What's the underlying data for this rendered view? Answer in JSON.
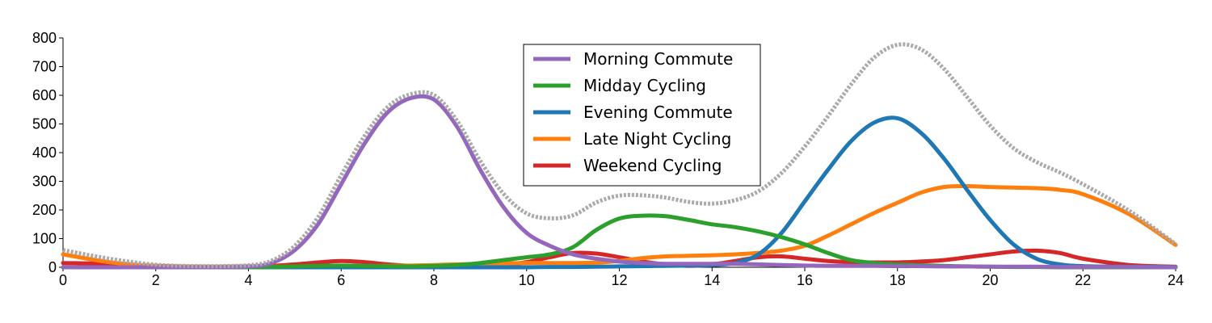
{
  "chart_data": {
    "type": "line",
    "title": "",
    "xlabel": "",
    "ylabel": "",
    "xlim": [
      0,
      24
    ],
    "ylim": [
      0,
      800
    ],
    "x_ticks": [
      0,
      2,
      4,
      6,
      8,
      10,
      12,
      14,
      16,
      18,
      20,
      22,
      24
    ],
    "y_ticks": [
      0,
      100,
      200,
      300,
      400,
      500,
      600,
      700,
      800
    ],
    "grid": false,
    "legend_position": "top-center",
    "x": [
      0,
      1,
      2,
      3,
      4,
      4.5,
      5,
      5.5,
      6,
      6.5,
      7,
      7.5,
      8,
      8.5,
      9,
      9.5,
      10,
      10.5,
      11,
      11.5,
      12,
      12.5,
      13,
      13.5,
      14,
      14.5,
      15,
      15.5,
      16,
      16.5,
      17,
      17.5,
      18,
      18.5,
      19,
      19.5,
      20,
      20.5,
      21,
      21.5,
      22,
      23,
      24
    ],
    "series": [
      {
        "name": "Morning Commute",
        "color": "#9467bd",
        "values": [
          0,
          0,
          0,
          0,
          2,
          15,
          60,
          150,
          290,
          430,
          540,
          590,
          585,
          490,
          340,
          210,
          120,
          75,
          45,
          30,
          20,
          15,
          12,
          12,
          12,
          12,
          10,
          8,
          6,
          5,
          5,
          5,
          4,
          4,
          3,
          3,
          2,
          2,
          2,
          1,
          1,
          1,
          0
        ]
      },
      {
        "name": "Midday Cycling",
        "color": "#2ca02c",
        "values": [
          0,
          0,
          0,
          0,
          0,
          1,
          3,
          5,
          6,
          5,
          4,
          3,
          5,
          8,
          15,
          25,
          35,
          45,
          70,
          130,
          170,
          180,
          178,
          165,
          150,
          140,
          125,
          105,
          80,
          50,
          25,
          15,
          10,
          7,
          5,
          3,
          2,
          1,
          1,
          0,
          0,
          0,
          0
        ]
      },
      {
        "name": "Evening Commute",
        "color": "#1f77b4",
        "values": [
          0,
          0,
          0,
          0,
          0,
          0,
          0,
          0,
          0,
          0,
          0,
          0,
          0,
          0,
          0,
          0,
          0,
          1,
          1,
          2,
          3,
          4,
          5,
          6,
          8,
          15,
          45,
          120,
          230,
          340,
          440,
          505,
          520,
          470,
          380,
          270,
          165,
          80,
          30,
          10,
          4,
          2,
          1
        ]
      },
      {
        "name": "Late Night Cycling",
        "color": "#ff7f0e",
        "values": [
          45,
          18,
          4,
          2,
          2,
          2,
          2,
          3,
          3,
          4,
          5,
          6,
          8,
          10,
          12,
          14,
          15,
          15,
          15,
          16,
          22,
          32,
          38,
          40,
          42,
          45,
          50,
          58,
          75,
          110,
          150,
          190,
          225,
          260,
          280,
          283,
          280,
          278,
          276,
          270,
          255,
          185,
          78
        ]
      },
      {
        "name": "Weekend Cycling",
        "color": "#d62728",
        "values": [
          15,
          12,
          5,
          2,
          3,
          5,
          10,
          17,
          22,
          18,
          10,
          5,
          3,
          3,
          4,
          8,
          18,
          35,
          50,
          48,
          35,
          20,
          10,
          5,
          10,
          22,
          35,
          38,
          30,
          22,
          18,
          17,
          17,
          20,
          25,
          35,
          45,
          55,
          58,
          50,
          30,
          8,
          2
        ]
      }
    ],
    "total": {
      "color": "#aaaaaa",
      "values": [
        60,
        30,
        9,
        4,
        7,
        23,
        75,
        175,
        321,
        457,
        559,
        604,
        601,
        511,
        371,
        257,
        188,
        171,
        181,
        226,
        250,
        251,
        243,
        228,
        222,
        234,
        265,
        329,
        421,
        527,
        638,
        732,
        776,
        761,
        693,
        594,
        494,
        416,
        367,
        331,
        290,
        197,
        81
      ]
    }
  }
}
